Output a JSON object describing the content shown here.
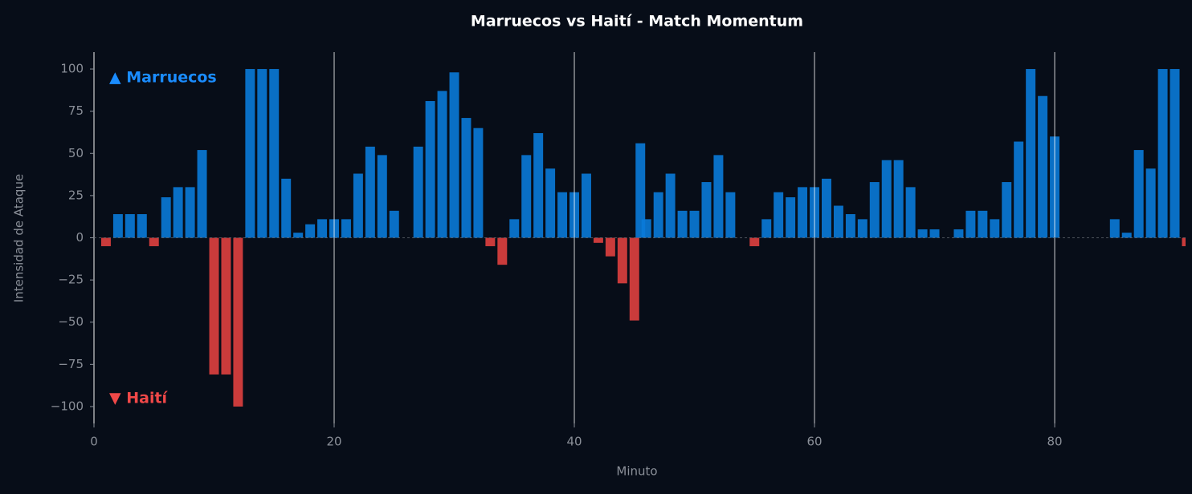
{
  "chart_data": {
    "type": "bar",
    "title": "Marruecos vs Haití - Match Momentum",
    "x_label": "Minuto",
    "y_label": "Intensidad de Ataque",
    "x": [
      1,
      2,
      3,
      4,
      5,
      6,
      7,
      8,
      9,
      10,
      11,
      12,
      13,
      14,
      15,
      16,
      17,
      18,
      19,
      20,
      21,
      22,
      23,
      24,
      25,
      26,
      27,
      28,
      29,
      30,
      31,
      32,
      33,
      34,
      35,
      36,
      37,
      38,
      39,
      40,
      41,
      42,
      43,
      44,
      45,
      45.5,
      46,
      47,
      48,
      49,
      50,
      51,
      52,
      53,
      54,
      55,
      56,
      57,
      58,
      59,
      60,
      61,
      62,
      63,
      64,
      65,
      66,
      67,
      68,
      69,
      70,
      71,
      72,
      73,
      74,
      75,
      76,
      77,
      78,
      79,
      80,
      81,
      82,
      83,
      84,
      85,
      86,
      87,
      88,
      89,
      90,
      91
    ],
    "values": [
      -5,
      14,
      14,
      14,
      -5,
      24,
      30,
      30,
      52,
      -81,
      -81,
      -100,
      100,
      100,
      100,
      35,
      3,
      8,
      11,
      11,
      11,
      38,
      54,
      49,
      16,
      0,
      54,
      81,
      87,
      98,
      71,
      65,
      -5,
      -16,
      11,
      49,
      62,
      41,
      27,
      27,
      38,
      -3,
      -11,
      -27,
      -49,
      56,
      11,
      27,
      38,
      16,
      16,
      33,
      49,
      27,
      0,
      -5,
      11,
      27,
      24,
      30,
      30,
      35,
      19,
      14,
      11,
      33,
      46,
      46,
      30,
      5,
      5,
      0,
      5,
      16,
      16,
      11,
      33,
      57,
      100,
      84,
      60,
      0,
      0,
      0,
      0,
      11,
      3,
      52,
      41,
      100,
      100,
      -5
    ],
    "positive_color": "#0a7ad8",
    "negative_color": "#e0403f",
    "xlim": [
      0,
      90.9
    ],
    "xticks": [
      0,
      20,
      40,
      60,
      80
    ],
    "ylim": [
      -110,
      110
    ],
    "yticks": [
      {
        "value": -100,
        "label": "−100"
      },
      {
        "value": -75,
        "label": "−75"
      },
      {
        "value": -50,
        "label": "−50"
      },
      {
        "value": -25,
        "label": "−25"
      },
      0,
      25,
      50,
      75,
      100
    ],
    "x_grid": true,
    "annotations": [
      {
        "text": "▲ Marruecos",
        "color": "#1a8cff"
      },
      {
        "text": "▼ Haití",
        "color": "#f04848"
      }
    ]
  }
}
